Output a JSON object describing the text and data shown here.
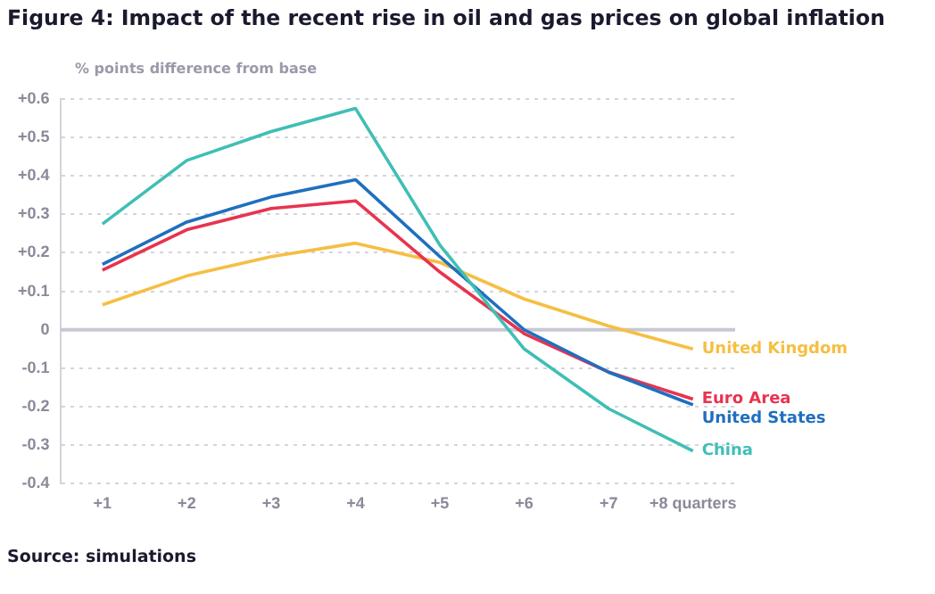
{
  "chart_data": {
    "type": "line",
    "title": "Figure 4: Impact of the recent rise in oil and gas prices on global inflation",
    "ylabel": "% points difference from base",
    "categories": [
      "+1",
      "+2",
      "+3",
      "+4",
      "+5",
      "+6",
      "+7",
      "+8 quarters"
    ],
    "series": [
      {
        "name": "China",
        "color": "#3fbfb5",
        "values": [
          0.275,
          0.44,
          0.515,
          0.575,
          0.22,
          -0.05,
          -0.205,
          -0.315
        ]
      },
      {
        "name": "United States",
        "color": "#1f6fbf",
        "values": [
          0.17,
          0.28,
          0.345,
          0.39,
          0.19,
          0.0,
          -0.11,
          -0.195
        ]
      },
      {
        "name": "Euro Area",
        "color": "#e8334f",
        "values": [
          0.155,
          0.26,
          0.315,
          0.335,
          0.15,
          -0.01,
          -0.11,
          -0.18
        ]
      },
      {
        "name": "United Kingdom",
        "color": "#f5bf42",
        "values": [
          0.065,
          0.14,
          0.19,
          0.225,
          0.175,
          0.08,
          0.01,
          -0.05
        ]
      }
    ],
    "ylim": [
      -0.4,
      0.6
    ],
    "yticks": [
      {
        "value": -0.4,
        "label": "-0.4"
      },
      {
        "value": -0.3,
        "label": "-0.3"
      },
      {
        "value": -0.2,
        "label": "-0.2"
      },
      {
        "value": -0.1,
        "label": "-0.1"
      },
      {
        "value": 0,
        "label": "0"
      },
      {
        "value": 0.1,
        "label": "+0.1"
      },
      {
        "value": 0.2,
        "label": "+0.2"
      },
      {
        "value": 0.3,
        "label": "+0.3"
      },
      {
        "value": 0.4,
        "label": "+0.4"
      },
      {
        "value": 0.5,
        "label": "+0.5"
      },
      {
        "value": 0.6,
        "label": "+0.6"
      }
    ],
    "ref_lines": [
      {
        "axis": "y",
        "value": 0,
        "color": "#c8c8d4"
      }
    ],
    "grid": "y",
    "legend": false,
    "marker": "none",
    "line_style": "solid",
    "annotations": [
      "Source: simulations"
    ]
  }
}
